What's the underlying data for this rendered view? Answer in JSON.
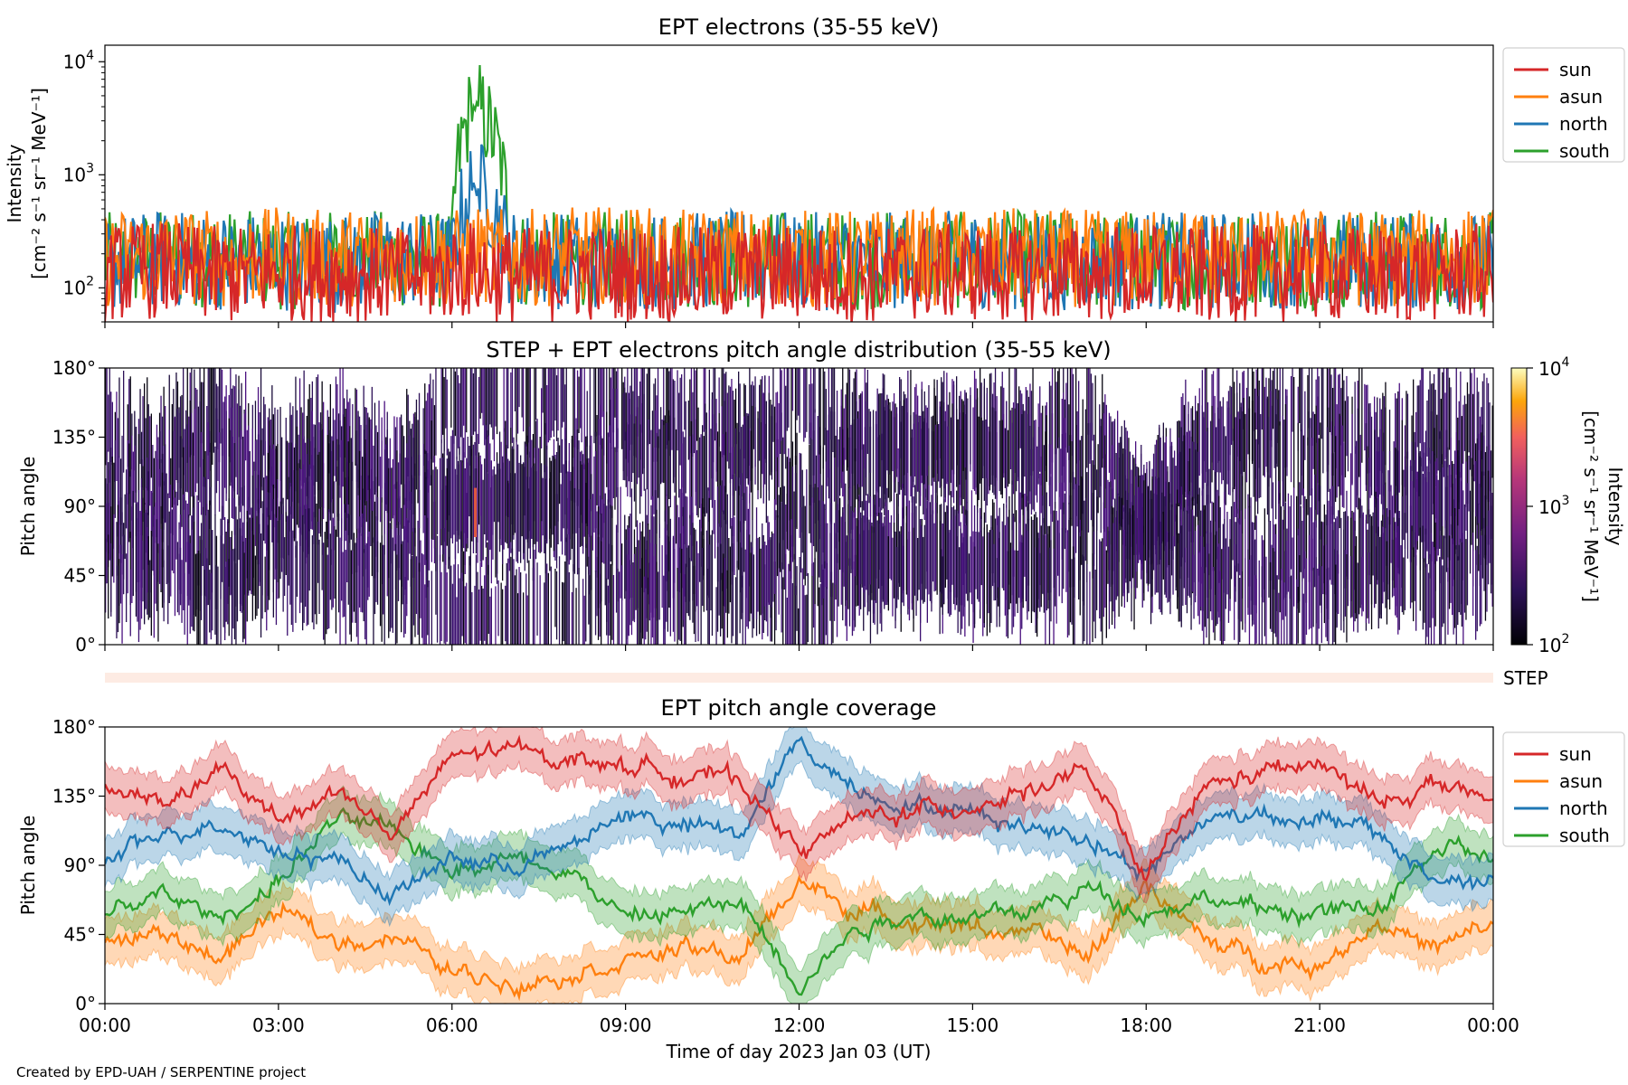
{
  "footer": "Created by EPD-UAH / SERPENTINE project",
  "colors": {
    "sun": "#d62728",
    "asun": "#ff7f0e",
    "north": "#1f77b4",
    "south": "#2ca02c",
    "step_strip": "#fdebe3"
  },
  "x_axis": {
    "label": "Time of day 2023 Jan 03 (UT)",
    "ticks": [
      "00:00",
      "03:00",
      "06:00",
      "09:00",
      "12:00",
      "15:00",
      "18:00",
      "21:00",
      "00:00"
    ],
    "range_hours": [
      0,
      24
    ]
  },
  "panel1": {
    "title": "EPT electrons (35-55 keV)",
    "ylabel_line1": "Intensity",
    "ylabel_line2": "[cm⁻² s⁻¹ sr⁻¹ MeV⁻¹]",
    "ytick_exponents": [
      "4",
      "3",
      "2"
    ],
    "legend": [
      "sun",
      "asun",
      "north",
      "south"
    ]
  },
  "panel2": {
    "title": "STEP + EPT electrons pitch angle distribution (35-55 keV)",
    "ylabel": "Pitch angle",
    "yticks": [
      "180°",
      "135°",
      "90°",
      "45°",
      "0°"
    ],
    "colorbar_label": "Intensity",
    "colorbar_units": "[cm⁻² s⁻¹ sr⁻¹ MeV⁻¹]",
    "colorbar_exponents": [
      "4",
      "3",
      "2"
    ],
    "step_label": "STEP"
  },
  "panel3": {
    "title": "EPT pitch angle coverage",
    "ylabel": "Pitch angle",
    "yticks": [
      "180°",
      "135°",
      "90°",
      "45°",
      "0°"
    ],
    "legend": [
      "sun",
      "asun",
      "north",
      "south"
    ]
  },
  "chart_data": [
    {
      "type": "line",
      "title": "EPT electrons (35-55 keV)",
      "ylabel": "Intensity [cm⁻² s⁻¹ sr⁻¹ MeV⁻¹]",
      "xlabel": "",
      "log_y": true,
      "ylim": [
        50,
        14000
      ],
      "x_hours": [
        0,
        1,
        2,
        3,
        4,
        5,
        6,
        6.4,
        7,
        8,
        9,
        10,
        11,
        12,
        13,
        14,
        15,
        16,
        17,
        18,
        19,
        20,
        21,
        22,
        23,
        24
      ],
      "series": [
        {
          "name": "sun",
          "values": [
            150,
            160,
            140,
            150,
            150,
            140,
            150,
            160,
            140,
            150,
            150,
            140,
            150,
            150,
            140,
            150,
            150,
            140,
            150,
            150,
            140,
            150,
            150,
            140,
            150,
            150
          ]
        },
        {
          "name": "asun",
          "values": [
            200,
            220,
            200,
            210,
            200,
            220,
            200,
            220,
            200,
            210,
            220,
            200,
            210,
            200,
            200,
            210,
            200,
            210,
            200,
            200,
            210,
            200,
            210,
            200,
            200,
            210
          ]
        },
        {
          "name": "north",
          "values": [
            180,
            200,
            190,
            190,
            180,
            200,
            190,
            950,
            200,
            190,
            190,
            190,
            200,
            190,
            190,
            190,
            200,
            190,
            190,
            190,
            190,
            200,
            190,
            190,
            190,
            190
          ]
        },
        {
          "name": "south",
          "values": [
            190,
            200,
            200,
            190,
            200,
            200,
            190,
            4800,
            200,
            190,
            200,
            200,
            190,
            200,
            190,
            200,
            190,
            200,
            190,
            200,
            190,
            200,
            190,
            200,
            200,
            190
          ]
        }
      ]
    },
    {
      "type": "heatmap",
      "title": "STEP + EPT electrons pitch angle distribution (35-55 keV)",
      "ylabel": "Pitch angle",
      "colorbar": "Intensity [cm⁻² s⁻¹ sr⁻¹ MeV⁻¹]",
      "colorbar_range": [
        100,
        10000
      ],
      "log_color": true,
      "ylim": [
        0,
        180
      ],
      "note_peak": {
        "x_hours": 6.4,
        "pitch_angle": 90,
        "intensity": 1000
      }
    },
    {
      "type": "line",
      "title": "EPT pitch angle coverage",
      "ylabel": "Pitch angle",
      "xlabel": "Time of day 2023 Jan 03 (UT)",
      "ylim": [
        0,
        180
      ],
      "x_hours": [
        0,
        1,
        2,
        3,
        4,
        5,
        6,
        7,
        8,
        9,
        10,
        11,
        12,
        13,
        14,
        15,
        16,
        17,
        18,
        19,
        20,
        21,
        22,
        23,
        24
      ],
      "series": [
        {
          "name": "sun",
          "values": [
            140,
            130,
            150,
            120,
            140,
            110,
            160,
            165,
            160,
            155,
            150,
            145,
            100,
            120,
            125,
            130,
            140,
            150,
            80,
            140,
            150,
            155,
            130,
            145,
            130
          ]
        },
        {
          "name": "asun",
          "values": [
            40,
            45,
            30,
            60,
            40,
            45,
            20,
            15,
            20,
            30,
            35,
            30,
            80,
            60,
            55,
            50,
            45,
            30,
            80,
            40,
            30,
            25,
            55,
            35,
            50
          ]
        },
        {
          "name": "north",
          "values": [
            90,
            110,
            120,
            100,
            95,
            70,
            95,
            90,
            100,
            125,
            115,
            110,
            170,
            140,
            130,
            125,
            115,
            110,
            85,
            120,
            125,
            120,
            110,
            80,
            80
          ]
        },
        {
          "name": "south",
          "values": [
            60,
            70,
            55,
            80,
            120,
            110,
            90,
            95,
            90,
            55,
            60,
            65,
            15,
            50,
            60,
            55,
            60,
            75,
            60,
            70,
            60,
            60,
            60,
            100,
            95
          ]
        }
      ]
    }
  ]
}
